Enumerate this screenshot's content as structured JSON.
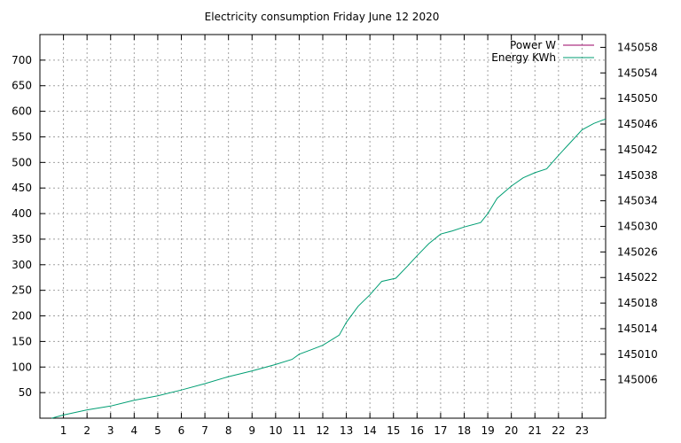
{
  "chart_data": {
    "type": "line",
    "title": "Electricity consumption Friday June 12 2020",
    "xlabel": "",
    "ylabel": "",
    "y2label": "",
    "grid": true,
    "legend_position": "top-right",
    "xlim": [
      0,
      24
    ],
    "ylim": [
      0,
      750
    ],
    "y2lim": [
      145000,
      145060
    ],
    "x_ticks": [
      1,
      2,
      3,
      4,
      5,
      6,
      7,
      8,
      9,
      10,
      11,
      12,
      13,
      14,
      15,
      16,
      17,
      18,
      19,
      20,
      21,
      22,
      23
    ],
    "y_ticks": [
      50,
      100,
      150,
      200,
      250,
      300,
      350,
      400,
      450,
      500,
      550,
      600,
      650,
      700
    ],
    "y2_ticks": [
      145006,
      145010,
      145014,
      145018,
      145022,
      145026,
      145030,
      145034,
      145038,
      145042,
      145046,
      145050,
      145054,
      145058
    ],
    "series": [
      {
        "name": "Power W",
        "color": "#990066",
        "axis": "left",
        "x": [],
        "y": []
      },
      {
        "name": "Energy KWh",
        "color": "#009E73",
        "axis": "right",
        "x": [
          0.5,
          1,
          2,
          3,
          4,
          5,
          6,
          7,
          8,
          9,
          10,
          10.7,
          11,
          11.5,
          12,
          12.7,
          13,
          13.5,
          14,
          14.5,
          15.1,
          15.6,
          16,
          16.5,
          17,
          17.5,
          18,
          18.7,
          19,
          19.4,
          20,
          20.5,
          21,
          21.5,
          22,
          22.5,
          23,
          23.5,
          24
        ],
        "y": [
          145000.0,
          145000.5,
          145001.3,
          145001.9,
          145002.8,
          145003.5,
          145004.4,
          145005.4,
          145006.5,
          145007.4,
          145008.4,
          145009.2,
          145010.0,
          145010.7,
          145011.4,
          145013.0,
          145015.0,
          145017.5,
          145019.3,
          145021.4,
          145021.9,
          145023.8,
          145025.4,
          145027.3,
          145028.8,
          145029.3,
          145029.9,
          145030.6,
          145032.0,
          145034.4,
          145036.3,
          145037.6,
          145038.4,
          145039.0,
          145041.1,
          145043.1,
          145045.1,
          145046.1,
          145046.8
        ]
      }
    ]
  }
}
